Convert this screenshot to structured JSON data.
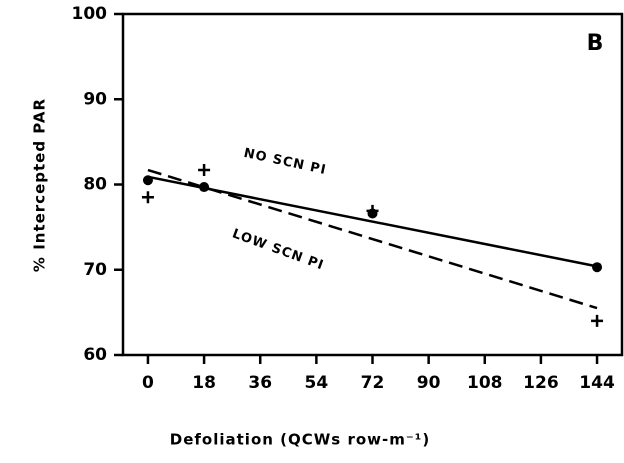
{
  "chart_data": {
    "type": "scatter",
    "xlabel": "Defoliation (QCWs row-m⁻¹)",
    "ylabel": "% Intercepted PAR",
    "annotation": "B",
    "xlim": [
      -8,
      152
    ],
    "ylim": [
      60,
      100
    ],
    "xticks": [
      0,
      18,
      36,
      54,
      72,
      90,
      108,
      126,
      144
    ],
    "yticks": [
      60,
      70,
      80,
      90,
      100
    ],
    "color": "#000000",
    "series": [
      {
        "name": "NO SCN PI",
        "marker": "circle",
        "x": [
          0,
          18,
          72,
          144
        ],
        "values": [
          80.5,
          79.7,
          76.6,
          70.3
        ],
        "fit": {
          "style": "solid",
          "x": [
            0,
            144
          ],
          "values": [
            80.9,
            70.4
          ]
        }
      },
      {
        "name": "LOW SCN PI",
        "marker": "plus",
        "x": [
          0,
          18,
          72,
          144
        ],
        "values": [
          78.5,
          81.7,
          76.9,
          64.0
        ],
        "fit": {
          "style": "dashed",
          "x": [
            0,
            144
          ],
          "values": [
            81.7,
            65.5
          ]
        }
      }
    ]
  }
}
